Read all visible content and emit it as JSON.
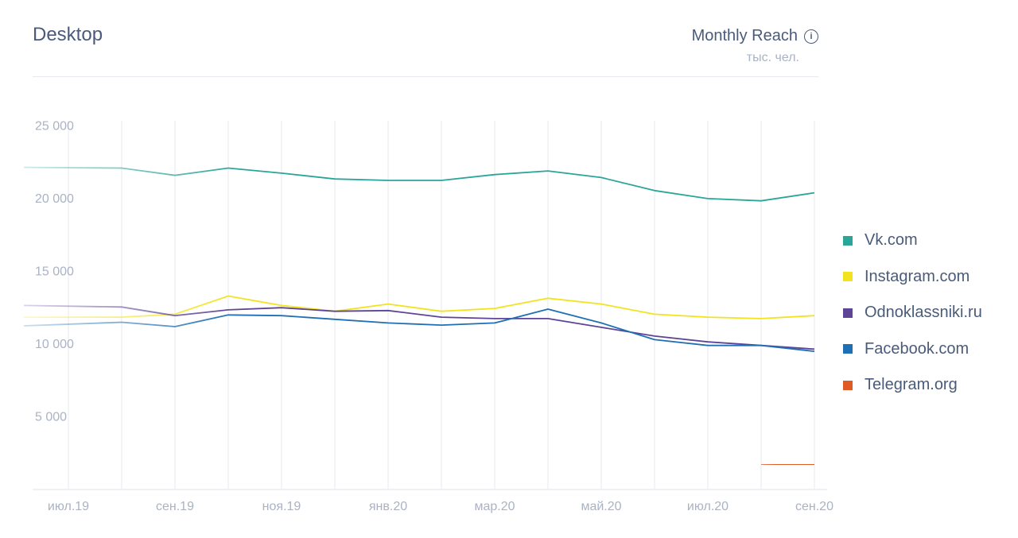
{
  "header": {
    "title": "Desktop",
    "metric_label": "Monthly Reach",
    "info_icon": "info-icon",
    "unit": "тыс. чел."
  },
  "chart_data": {
    "type": "line",
    "title": "Desktop",
    "ylabel": "тыс. чел.",
    "ylim": [
      0,
      25000
    ],
    "yticks": [
      5000,
      10000,
      15000,
      20000,
      25000
    ],
    "ytick_labels": [
      "5 000",
      "10 000",
      "15 000",
      "20 000",
      "25 000"
    ],
    "x": [
      "2019-07",
      "2019-08",
      "2019-09",
      "2019-10",
      "2019-11",
      "2019-12",
      "2020-01",
      "2020-02",
      "2020-03",
      "2020-04",
      "2020-05",
      "2020-06",
      "2020-07",
      "2020-08",
      "2020-09"
    ],
    "xtick_labels": [
      "июл.19",
      "",
      "сен.19",
      "",
      "ноя.19",
      "",
      "янв.20",
      "",
      "мар.20",
      "",
      "май.20",
      "",
      "июл.20",
      "",
      "сен.20"
    ],
    "grid": true,
    "legend_position": "right",
    "series": [
      {
        "name": "Vk.com",
        "color": "#2aa59a",
        "values": [
          22100,
          22050,
          21550,
          22050,
          21700,
          21300,
          21200,
          21200,
          21600,
          21850,
          21400,
          20500,
          19950,
          19800,
          20350
        ]
      },
      {
        "name": "Instagram.com",
        "color": "#f2e31e",
        "values": [
          11800,
          11800,
          12000,
          13250,
          12600,
          12200,
          12700,
          12200,
          12400,
          13100,
          12700,
          12000,
          11800,
          11700,
          11900
        ]
      },
      {
        "name": "Odnoklassniki.ru",
        "color": "#5e4496",
        "values": [
          12600,
          12500,
          11900,
          12300,
          12450,
          12200,
          12250,
          11800,
          11700,
          11700,
          11100,
          10500,
          10100,
          9850,
          9600
        ]
      },
      {
        "name": "Facebook.com",
        "color": "#1f6fb5",
        "values": [
          11200,
          11450,
          11150,
          11950,
          11900,
          11650,
          11400,
          11250,
          11400,
          12350,
          11400,
          10250,
          9850,
          9850,
          9450
        ]
      },
      {
        "name": "Telegram.org",
        "color": "#e05a25",
        "values": [
          null,
          null,
          null,
          null,
          null,
          null,
          null,
          null,
          null,
          null,
          null,
          null,
          null,
          1700,
          1650
        ]
      }
    ]
  }
}
